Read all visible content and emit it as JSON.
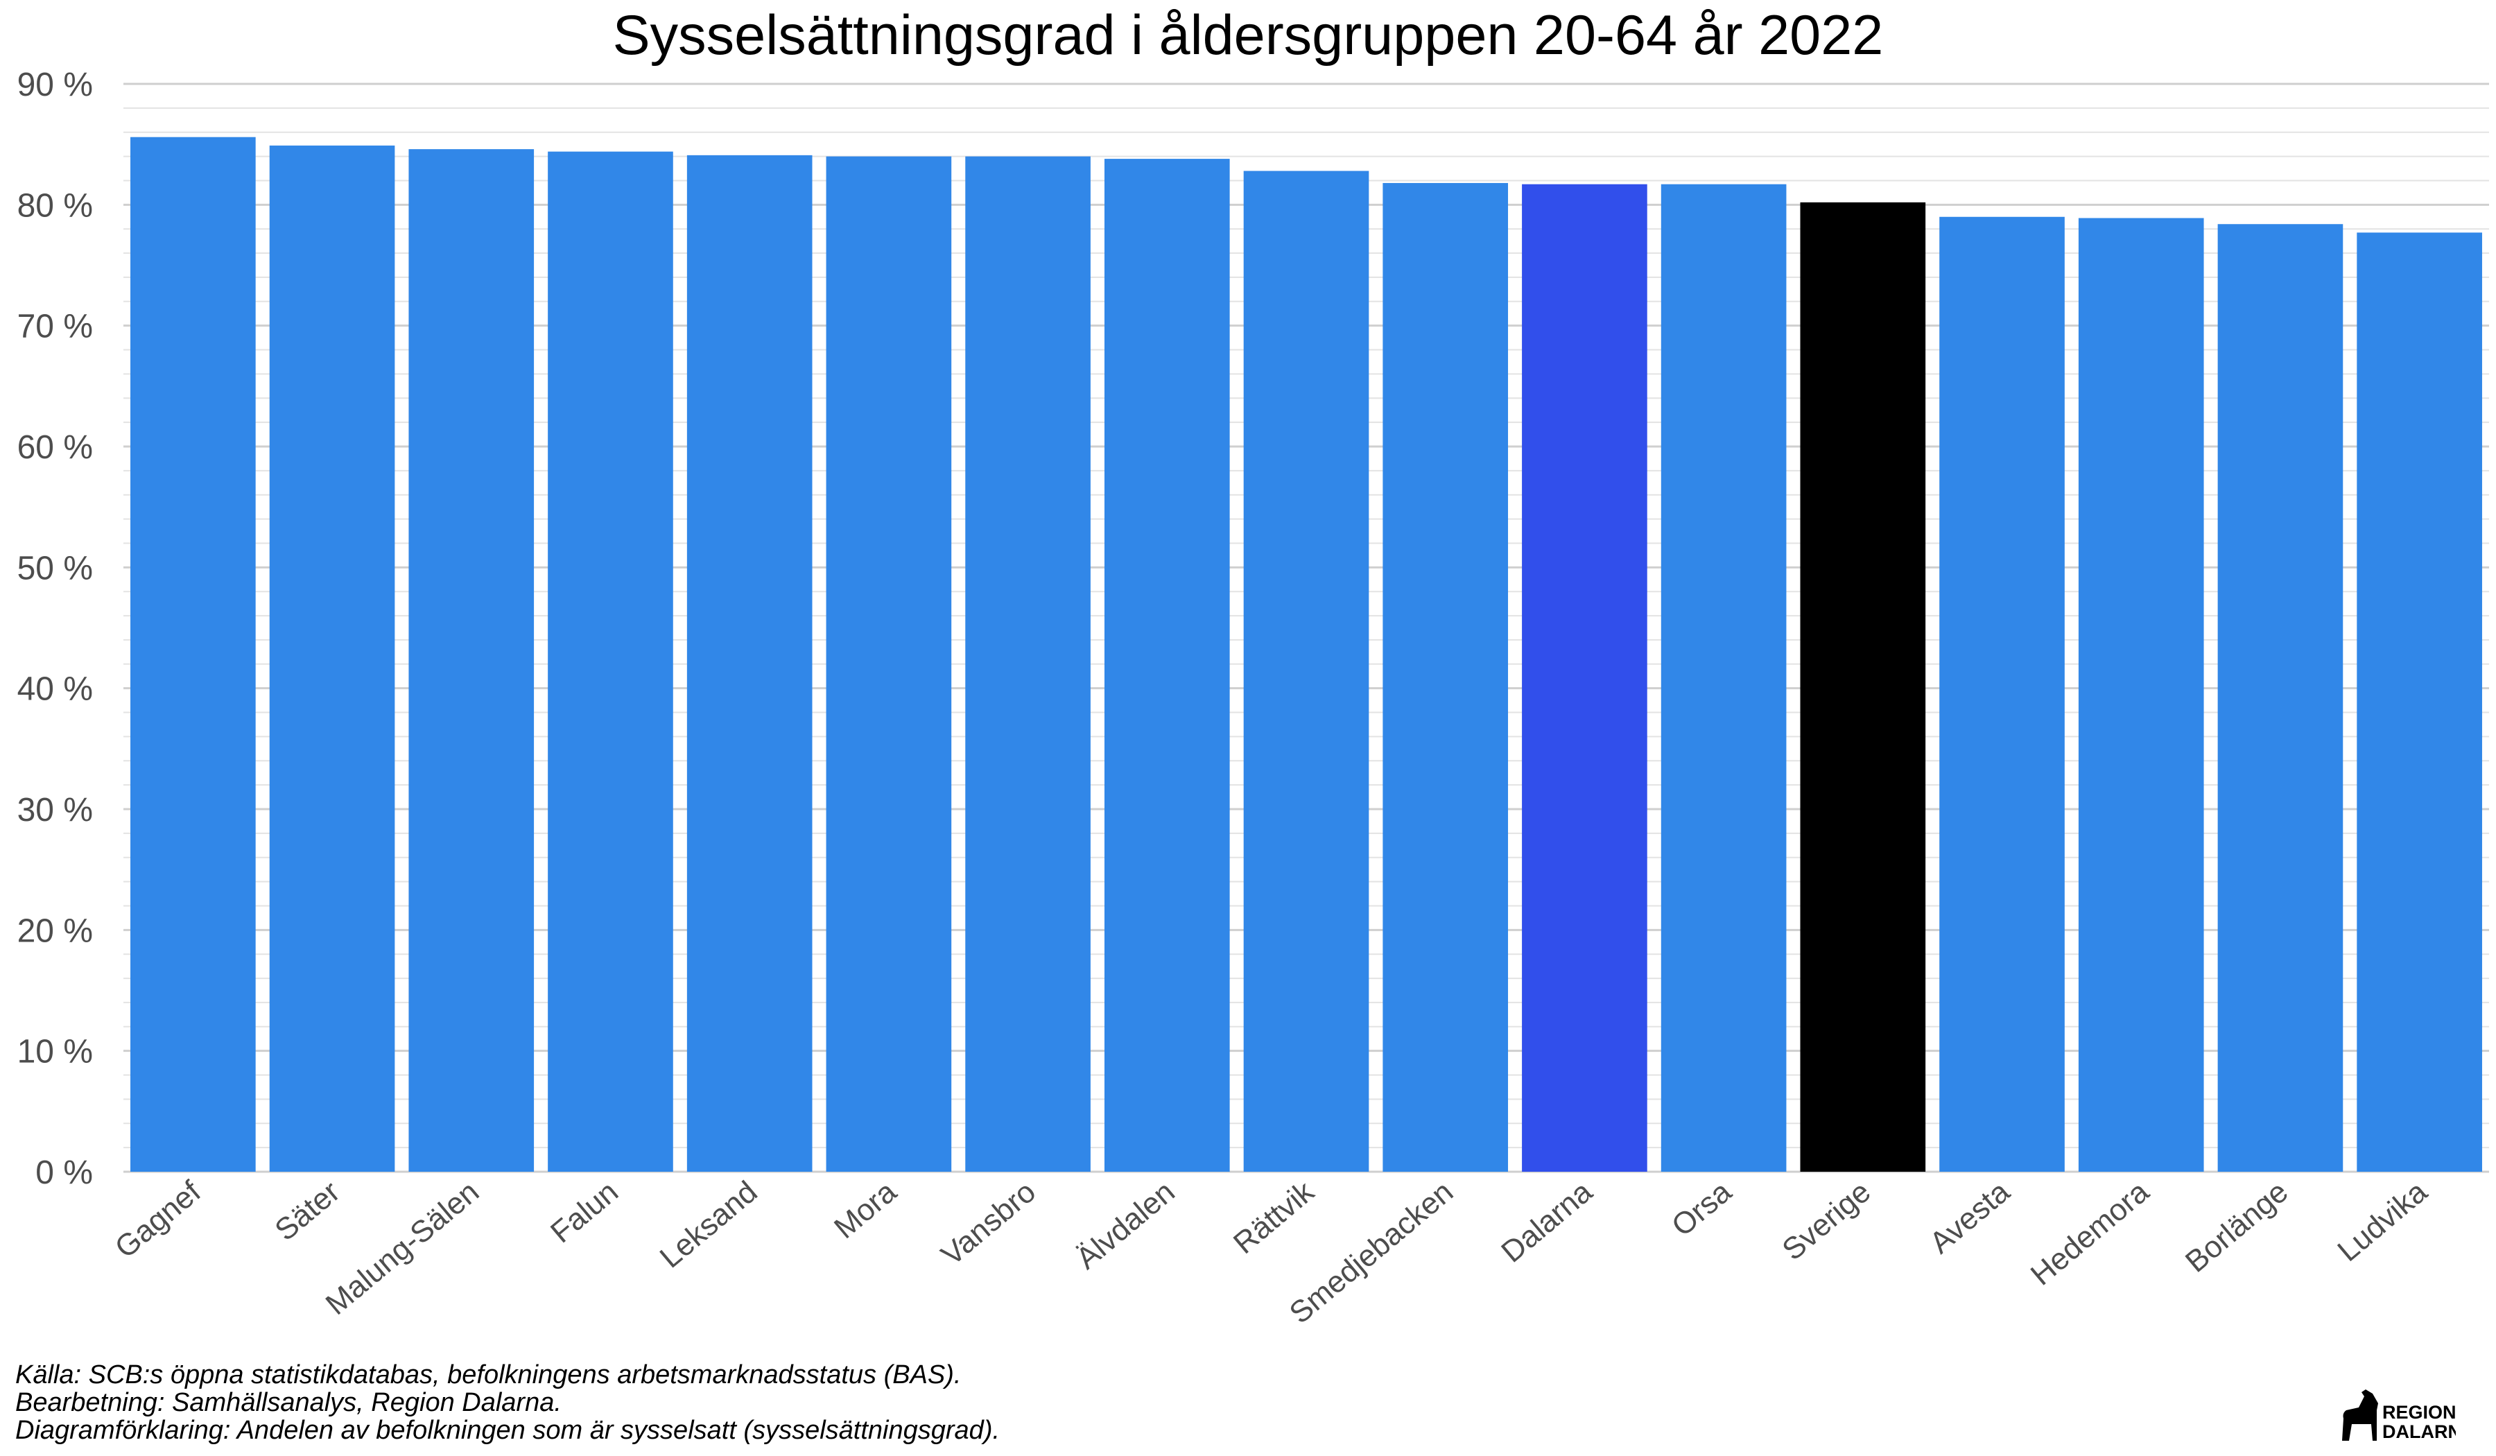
{
  "chart_data": {
    "type": "bar",
    "title": "Sysselsättningsgrad i åldersgruppen 20-64 år 2022",
    "xlabel": "",
    "ylabel": "",
    "ylim": [
      0,
      90
    ],
    "y_ticks": [
      "0 %",
      "10 %",
      "20 %",
      "30 %",
      "40 %",
      "50 %",
      "60 %",
      "70 %",
      "80 %",
      "90 %"
    ],
    "y_tick_values": [
      0,
      10,
      20,
      30,
      40,
      50,
      60,
      70,
      80,
      90
    ],
    "grid": "horizontal major and minor",
    "legend": "none",
    "categories": [
      "Gagnef",
      "Säter",
      "Malung-Sälen",
      "Falun",
      "Leksand",
      "Mora",
      "Vansbro",
      "Älvdalen",
      "Rättvik",
      "Smedjebacken",
      "Dalarna",
      "Orsa",
      "Sverige",
      "Avesta",
      "Hedemora",
      "Borlänge",
      "Ludvika"
    ],
    "values": [
      85.6,
      84.9,
      84.6,
      84.4,
      84.1,
      84.0,
      84.0,
      83.8,
      82.8,
      81.8,
      81.7,
      81.7,
      80.2,
      79.0,
      78.9,
      78.4,
      77.7
    ],
    "colors": [
      "#3187e8",
      "#3187e8",
      "#3187e8",
      "#3187e8",
      "#3187e8",
      "#3187e8",
      "#3187e8",
      "#3187e8",
      "#3187e8",
      "#3187e8",
      "#314feb",
      "#3187e8",
      "#000000",
      "#3187e8",
      "#3187e8",
      "#3187e8",
      "#3187e8"
    ]
  },
  "captions": {
    "source": "Källa: SCB:s öppna statistikdatabas, befolkningens arbetsmarknadsstatus (BAS).",
    "processing": "Bearbetning: Samhällsanalys, Region Dalarna.",
    "explanation": "Diagramförklaring: Andelen av befolkningen som är sysselsatt (sysselsättningsgrad)."
  },
  "logo": {
    "line1": "REGION",
    "line2": "DALARNA"
  },
  "colors": {
    "bar_default": "#3187e8",
    "bar_region": "#314feb",
    "bar_country": "#000000",
    "grid_major": "#cfcfcf",
    "grid_minor": "#e3e3e3",
    "tick_text": "#4d4d4d"
  }
}
